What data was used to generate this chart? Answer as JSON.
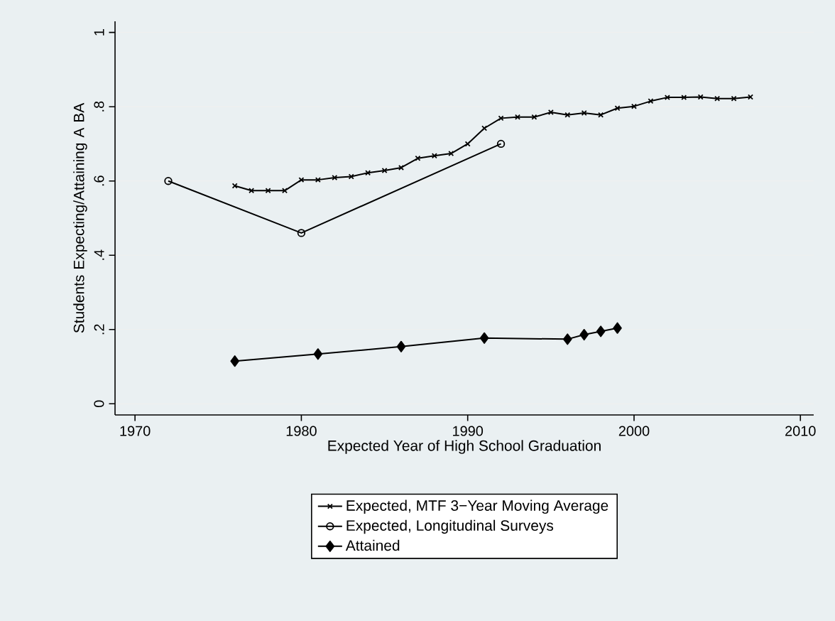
{
  "chart_data": {
    "type": "line",
    "xlabel": "Expected Year of High School Graduation",
    "ylabel": "Students Expecting/Attaining A BA",
    "xlim": [
      1968.8,
      2010.8
    ],
    "ylim": [
      -0.03,
      1.03
    ],
    "xticks": [
      1970,
      1980,
      1990,
      2000,
      2010
    ],
    "yticks": [
      {
        "value": 0,
        "label": "0"
      },
      {
        "value": 0.2,
        "label": ".2"
      },
      {
        "value": 0.4,
        "label": ".4"
      },
      {
        "value": 0.6,
        "label": ".6"
      },
      {
        "value": 0.8,
        "label": ".8"
      },
      {
        "value": 1,
        "label": "1"
      }
    ],
    "grid": "y",
    "legend": "bottom",
    "series": [
      {
        "name": "Expected, MTF 3−Year Moving Average",
        "color": "#000000",
        "marker": "cross",
        "x": [
          1976,
          1977,
          1978,
          1979,
          1980,
          1981,
          1982,
          1983,
          1984,
          1985,
          1986,
          1987,
          1988,
          1989,
          1990,
          1991,
          1992,
          1993,
          1994,
          1995,
          1996,
          1997,
          1998,
          1999,
          2000,
          2001,
          2002,
          2003,
          2004,
          2005,
          2006,
          2007
        ],
        "values": [
          0.587,
          0.574,
          0.574,
          0.574,
          0.603,
          0.603,
          0.609,
          0.612,
          0.622,
          0.628,
          0.636,
          0.661,
          0.668,
          0.674,
          0.7,
          0.742,
          0.769,
          0.772,
          0.772,
          0.785,
          0.778,
          0.783,
          0.778,
          0.796,
          0.801,
          0.815,
          0.825,
          0.825,
          0.826,
          0.822,
          0.822,
          0.826
        ]
      },
      {
        "name": "Expected, Longitudinal Surveys",
        "color": "#000000",
        "marker": "circle",
        "x": [
          1972,
          1980,
          1992
        ],
        "values": [
          0.6,
          0.46,
          0.7
        ]
      },
      {
        "name": "Attained",
        "color": "#000000",
        "marker": "diamond",
        "x": [
          1976,
          1981,
          1986,
          1991,
          1996,
          1997,
          1998,
          1999
        ],
        "values": [
          0.115,
          0.134,
          0.154,
          0.177,
          0.174,
          0.186,
          0.195,
          0.204
        ]
      }
    ]
  }
}
